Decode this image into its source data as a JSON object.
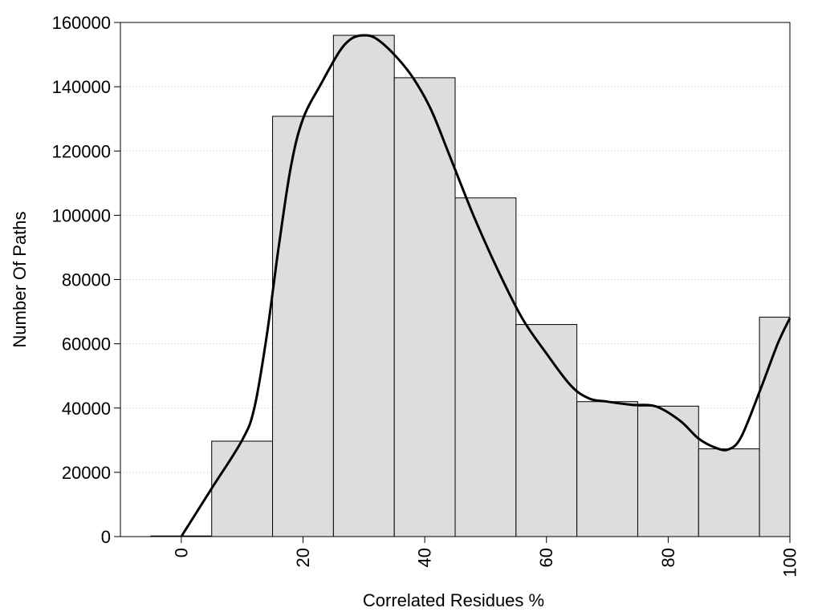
{
  "chart_data": {
    "type": "bar",
    "subtype": "histogram-with-smoothed-curve",
    "xlabel": "Correlated Residues %",
    "ylabel": "Number Of Paths",
    "xlim": [
      -10,
      100
    ],
    "ylim": [
      0,
      160000
    ],
    "x_ticks": [
      0,
      20,
      40,
      60,
      80,
      100
    ],
    "x_tick_labels": [
      "0",
      "20",
      "40",
      "60",
      "80",
      "100"
    ],
    "y_ticks": [
      0,
      20000,
      40000,
      60000,
      80000,
      100000,
      120000,
      140000,
      160000
    ],
    "y_tick_labels": [
      "0",
      "20000",
      "40000",
      "60000",
      "80000",
      "100000",
      "120000",
      "140000",
      "160000"
    ],
    "grid": "horizontal-dotted",
    "bar_color": "#dddddd",
    "edge_color": "#000000",
    "curve_color": "#000000",
    "bins": [
      {
        "start": -5,
        "end": 5,
        "value": 200
      },
      {
        "start": 5,
        "end": 15,
        "value": 29700
      },
      {
        "start": 15,
        "end": 25,
        "value": 130800
      },
      {
        "start": 25,
        "end": 35,
        "value": 156000
      },
      {
        "start": 35,
        "end": 45,
        "value": 142800
      },
      {
        "start": 45,
        "end": 55,
        "value": 105400
      },
      {
        "start": 55,
        "end": 65,
        "value": 66000
      },
      {
        "start": 65,
        "end": 75,
        "value": 42000
      },
      {
        "start": 75,
        "end": 85,
        "value": 40600
      },
      {
        "start": 85,
        "end": 95,
        "value": 27300
      },
      {
        "start": 95,
        "end": 100,
        "value": 68300
      }
    ],
    "curve": {
      "x": [
        0,
        5,
        10,
        12,
        14,
        16,
        18,
        20,
        23,
        26,
        28,
        30,
        32,
        35,
        38,
        41,
        44,
        48,
        52,
        56,
        60,
        64,
        67,
        70,
        74,
        78,
        82,
        85,
        88,
        90,
        92,
        95,
        98,
        100
      ],
      "y": [
        0,
        15000,
        30000,
        40000,
        62000,
        90000,
        115000,
        130000,
        141000,
        151000,
        155000,
        156000,
        155000,
        150000,
        143000,
        133000,
        119000,
        100000,
        83000,
        68000,
        57000,
        47000,
        43000,
        42000,
        41000,
        40500,
        36000,
        30500,
        27500,
        27200,
        31000,
        45000,
        60000,
        68000
      ]
    }
  }
}
